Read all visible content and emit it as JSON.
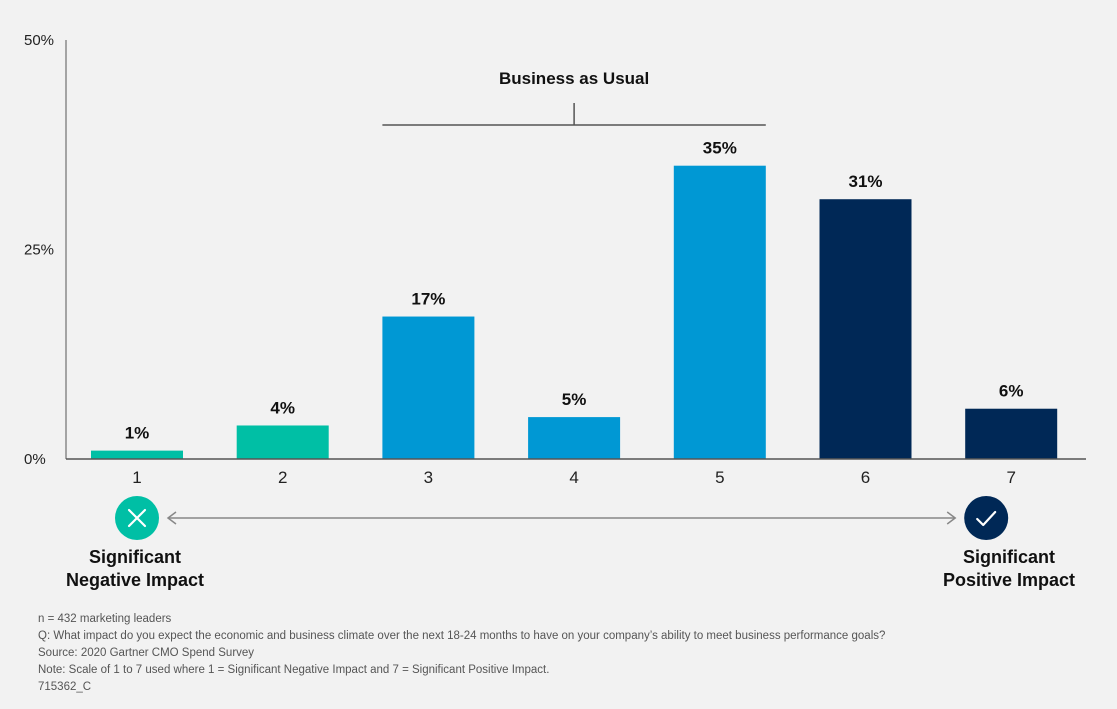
{
  "chart_data": {
    "type": "bar",
    "categories": [
      "1",
      "2",
      "3",
      "4",
      "5",
      "6",
      "7"
    ],
    "values": [
      1,
      4,
      17,
      5,
      35,
      31,
      6
    ],
    "value_labels": [
      "1%",
      "4%",
      "17%",
      "5%",
      "35%",
      "31%",
      "6%"
    ],
    "bar_colors": [
      "#00bfa5",
      "#00bfa5",
      "#0098d4",
      "#0098d4",
      "#0098d4",
      "#002856",
      "#002856"
    ],
    "ylim": [
      0,
      50
    ],
    "yticks": [
      0,
      25,
      50
    ],
    "ytick_labels": [
      "0%",
      "25%",
      "50%"
    ],
    "grid": false,
    "annotation": {
      "text": "Business as Usual",
      "span_categories": [
        "3",
        "5"
      ]
    },
    "scale_ends": {
      "negative": {
        "label": "Significant\nNegative Impact",
        "icon": "x-circle-icon",
        "color": "#00bfa5"
      },
      "positive": {
        "label": "Significant\nPositive Impact",
        "icon": "check-circle-icon",
        "color": "#002856"
      }
    }
  },
  "notes": [
    "n = 432 marketing leaders",
    "Q: What impact do you expect the economic and business climate over the next 18-24 months to have on your company’s ability to meet business performance goals?",
    "Source: 2020 Gartner CMO Spend Survey",
    "Note: Scale of 1 to 7 used where 1 = Significant Negative Impact and 7 = Significant Positive Impact.",
    "715362_C"
  ]
}
